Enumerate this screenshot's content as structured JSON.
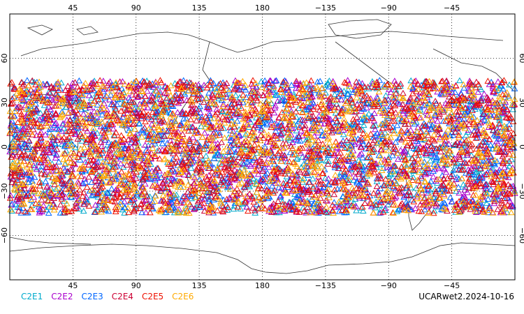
{
  "chart_data": {
    "type": "scatter",
    "title": "",
    "xlabel": "",
    "ylabel": "",
    "projection": "equirectangular, centered on 180",
    "xlim": [
      0,
      360
    ],
    "ylim": [
      -90,
      90
    ],
    "grid": true,
    "x_tick_labels": [
      "45",
      "90",
      "135",
      "180",
      "−135",
      "−90",
      "−45"
    ],
    "y_tick_labels": [
      "60",
      "30",
      "0",
      "−30",
      "−60"
    ],
    "y_ticks": [
      60,
      30,
      0,
      -30,
      -60
    ],
    "data_extent": {
      "lat_min": -45,
      "lat_max": 45,
      "lon_min": 0,
      "lon_max": 360
    },
    "marker": "open-triangle",
    "series": [
      {
        "name": "C2E1",
        "color": "#00aacc",
        "approx_count": 900
      },
      {
        "name": "C2E2",
        "color": "#aa00cc",
        "approx_count": 900
      },
      {
        "name": "C2E3",
        "color": "#0066ff",
        "approx_count": 900
      },
      {
        "name": "C2E4",
        "color": "#cc0033",
        "approx_count": 900
      },
      {
        "name": "C2E5",
        "color": "#ee1100",
        "approx_count": 900
      },
      {
        "name": "C2E6",
        "color": "#ffaa00",
        "approx_count": 900
      }
    ]
  },
  "footer_text": "UCARwet2.2024-10-16"
}
